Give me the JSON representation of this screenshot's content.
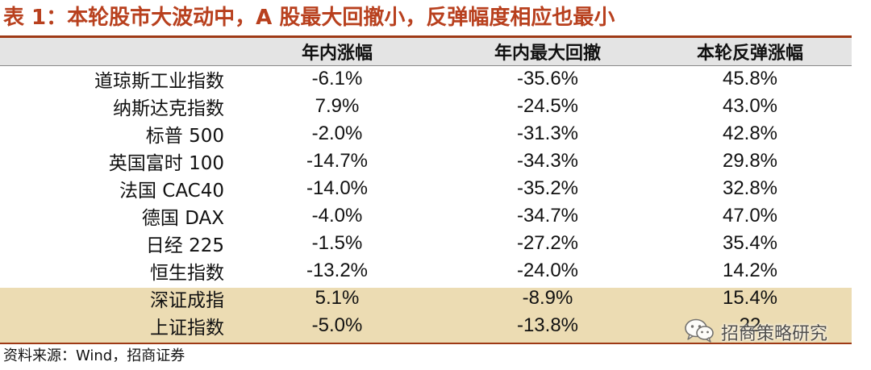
{
  "title": "表 1：本轮股市大波动中，A 股最大回撤小，反弹幅度相应也最小",
  "table": {
    "headers": [
      "",
      "年内涨幅",
      "年内最大回撤",
      "本轮反弹涨幅"
    ],
    "rows": [
      {
        "name": "道琼斯工业指数",
        "ytd": "-6.1%",
        "max_drawdown": "-35.6%",
        "rebound": "45.8%",
        "highlight": false
      },
      {
        "name": "纳斯达克指数",
        "ytd": "7.9%",
        "max_drawdown": "-24.5%",
        "rebound": "43.0%",
        "highlight": false
      },
      {
        "name": "标普 500",
        "ytd": "-2.0%",
        "max_drawdown": "-31.3%",
        "rebound": "42.8%",
        "highlight": false
      },
      {
        "name": "英国富时 100",
        "ytd": "-14.7%",
        "max_drawdown": "-34.3%",
        "rebound": "29.8%",
        "highlight": false
      },
      {
        "name": "法国 CAC40",
        "ytd": "-14.0%",
        "max_drawdown": "-35.2%",
        "rebound": "32.8%",
        "highlight": false
      },
      {
        "name": "德国 DAX",
        "ytd": "-4.0%",
        "max_drawdown": "-34.7%",
        "rebound": "47.0%",
        "highlight": false
      },
      {
        "name": "日经 225",
        "ytd": "-1.5%",
        "max_drawdown": "-27.2%",
        "rebound": "35.4%",
        "highlight": false
      },
      {
        "name": "恒生指数",
        "ytd": "-13.2%",
        "max_drawdown": "-24.0%",
        "rebound": "14.2%",
        "highlight": false
      },
      {
        "name": "深证成指",
        "ytd": "5.1%",
        "max_drawdown": "-8.9%",
        "rebound": "15.4%",
        "highlight": true
      },
      {
        "name": "上证指数",
        "ytd": "-5.0%",
        "max_drawdown": "-13.8%",
        "rebound": "22",
        "highlight": true
      }
    ]
  },
  "source": "资料来源：Wind，招商证券",
  "watermark": {
    "text": "招商策略研究",
    "icon": "wechat-icon"
  },
  "colors": {
    "title": "#b8401e",
    "rule": "#9e3a16",
    "header_bg": "#e4e4e4",
    "highlight_bg": "#ecdcb3"
  }
}
